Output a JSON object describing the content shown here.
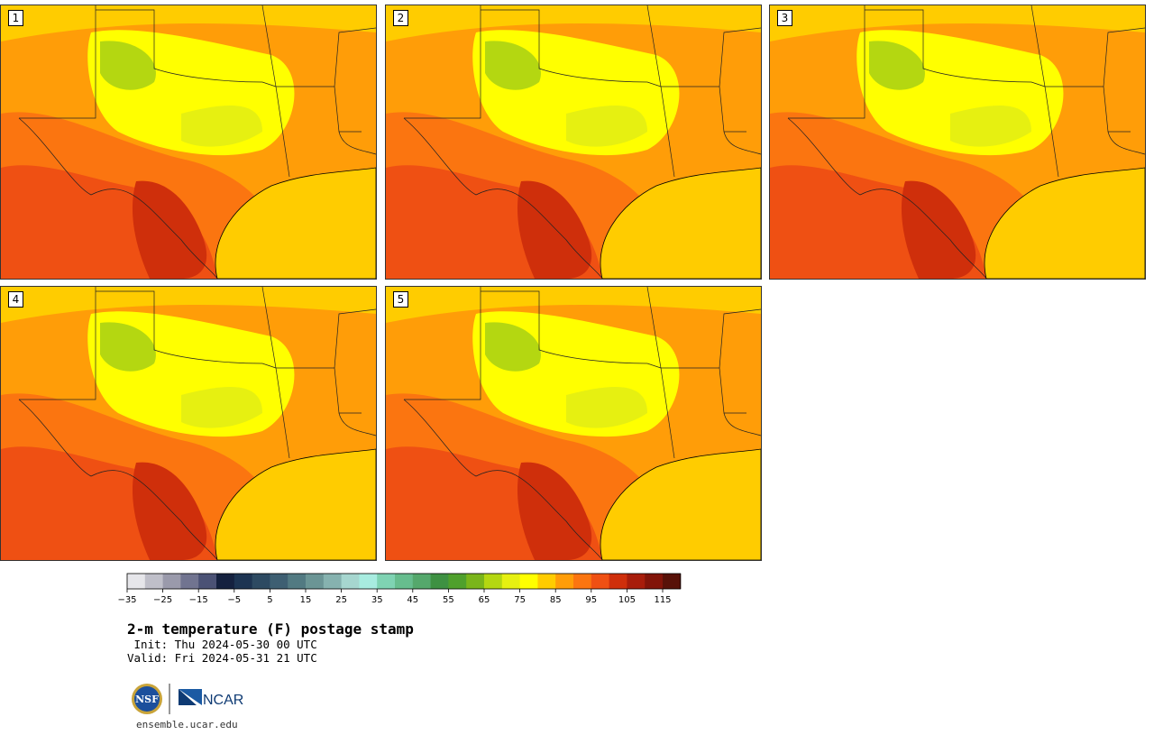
{
  "panels": [
    {
      "label": "1"
    },
    {
      "label": "2"
    },
    {
      "label": "3"
    },
    {
      "label": "4"
    },
    {
      "label": "5"
    }
  ],
  "colorbar": {
    "colors": [
      "#e6e6ea",
      "#bfbfc9",
      "#9a9aab",
      "#717490",
      "#4b5275",
      "#15213f",
      "#1d3452",
      "#2d4a62",
      "#3e5f72",
      "#527a82",
      "#6b9595",
      "#86b2af",
      "#a6d6cf",
      "#a8ece0",
      "#7fd3b3",
      "#67bd8e",
      "#55a86c",
      "#3e9142",
      "#4fa02c",
      "#7ab51a",
      "#b4d711",
      "#e6f011",
      "#ffff00",
      "#ffcc00",
      "#ff9d08",
      "#fb7510",
      "#ef5013",
      "#cf2f0b",
      "#a81d0b",
      "#821409",
      "#581108"
    ],
    "tick_labels": [
      "−35",
      "−25",
      "−15",
      "−5",
      "5",
      "15",
      "25",
      "35",
      "45",
      "55",
      "65",
      "75",
      "85",
      "95",
      "105",
      "115"
    ]
  },
  "title": "2-m temperature (F) postage stamp",
  "init": " Init: Thu 2024-05-30 00 UTC",
  "valid": "Valid: Fri 2024-05-31 21 UTC",
  "logos": {
    "nsf": "NSF",
    "ncar": "NCAR"
  },
  "url": "ensemble.ucar.edu"
}
